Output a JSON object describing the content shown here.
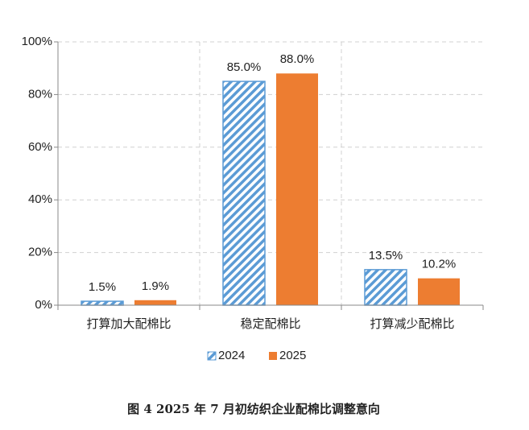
{
  "chart_data": {
    "type": "bar",
    "title": "图 4   2025 年 7 月初纺织企业配棉比调整意向",
    "categories": [
      "打算加大配棉比",
      "稳定配棉比",
      "打算减少配棉比"
    ],
    "series": [
      {
        "name": "2024",
        "color": "#5b9bd5",
        "hatch": true,
        "values": [
          1.5,
          85.0,
          13.5
        ],
        "value_labels": [
          "1.5%",
          "85.0%",
          "13.5%"
        ]
      },
      {
        "name": "2025",
        "color": "#ed7d31",
        "hatch": false,
        "values": [
          1.9,
          88.0,
          10.2
        ],
        "value_labels": [
          "1.9%",
          "88.0%",
          "10.2%"
        ]
      }
    ],
    "ylim": [
      0,
      100
    ],
    "yticks": [
      {
        "value": 0,
        "label": "0%"
      },
      {
        "value": 20,
        "label": "20%"
      },
      {
        "value": 40,
        "label": "40%"
      },
      {
        "value": 60,
        "label": "60%"
      },
      {
        "value": 80,
        "label": "80%"
      },
      {
        "value": 100,
        "label": "100%"
      }
    ],
    "grid": true,
    "legend": "bottom"
  }
}
